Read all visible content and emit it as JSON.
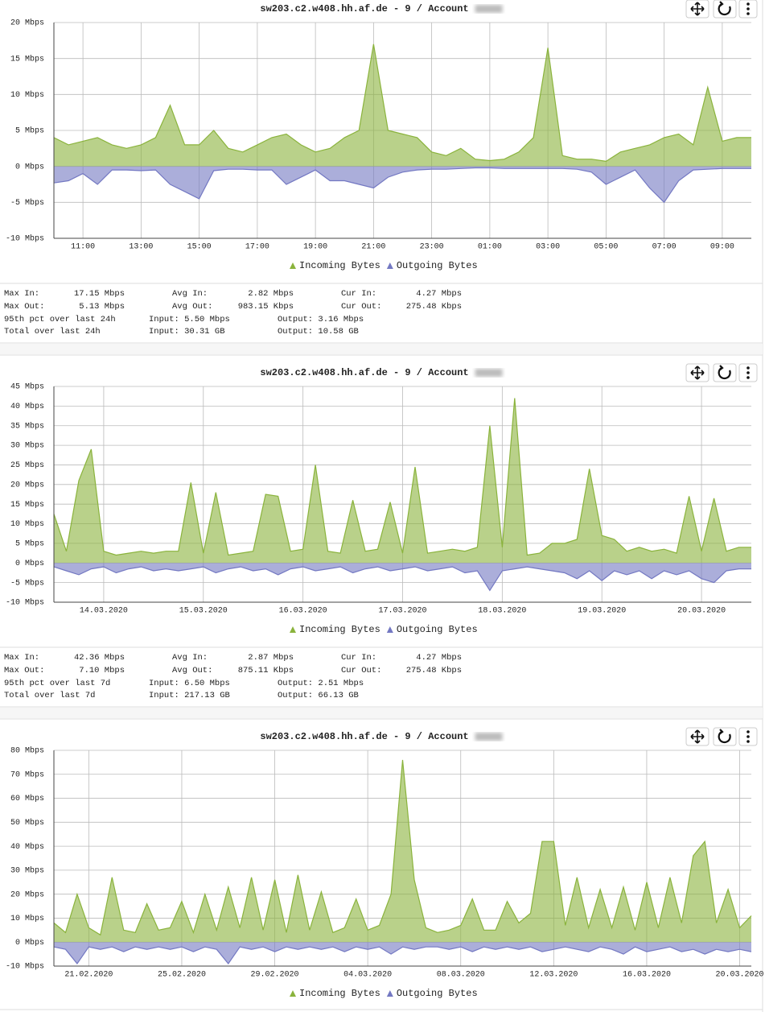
{
  "chart_data": [
    {
      "type": "area",
      "title": "sw203.c2.w408.hh.af.de - 9 / Account",
      "categories": [
        null,
        null,
        "11:00",
        null,
        null,
        null,
        "13:00",
        null,
        null,
        null,
        "15:00",
        null,
        null,
        null,
        "17:00",
        null,
        null,
        null,
        "19:00",
        null,
        null,
        null,
        "21:00",
        null,
        null,
        null,
        "23:00",
        null,
        null,
        null,
        "01:00",
        null,
        null,
        null,
        "03:00",
        null,
        null,
        null,
        "05:00",
        null,
        null,
        null,
        "07:00",
        null,
        null,
        null,
        "09:00",
        null,
        null
      ],
      "series": [
        {
          "name": "Incoming Bytes",
          "color": "#8ab33c",
          "values": [
            4,
            3,
            3.5,
            4,
            3,
            2.5,
            3,
            4,
            8.5,
            3,
            3,
            5,
            2.5,
            2,
            3,
            4,
            4.5,
            3,
            2,
            2.5,
            4,
            5,
            17,
            5,
            4.5,
            4,
            2,
            1.5,
            2.5,
            1,
            0.8,
            1,
            2,
            4,
            16.5,
            1.5,
            1,
            1,
            0.7,
            2,
            2.5,
            3,
            4,
            4.5,
            3,
            11,
            3.5,
            4,
            4
          ]
        },
        {
          "name": "Outgoing Bytes",
          "color": "#7378c2",
          "values": [
            -2.3,
            -2,
            -1,
            -2.5,
            -0.5,
            -0.5,
            -0.6,
            -0.5,
            -2.5,
            -3.5,
            -4.5,
            -0.6,
            -0.4,
            -0.4,
            -0.5,
            -0.5,
            -2.5,
            -1.5,
            -0.5,
            -2,
            -2,
            -2.5,
            -3,
            -1.5,
            -0.8,
            -0.5,
            -0.4,
            -0.4,
            -0.3,
            -0.2,
            -0.2,
            -0.3,
            -0.3,
            -0.3,
            -0.3,
            -0.3,
            -0.4,
            -0.8,
            -2.5,
            -1.5,
            -0.5,
            -3,
            -5,
            -2,
            -0.5,
            -0.4,
            -0.3,
            -0.3,
            -0.3
          ]
        }
      ],
      "ylim": [
        -10,
        20
      ],
      "yticks": [
        {
          "value": -10,
          "label": "-10 Mbps"
        },
        {
          "value": -5,
          "label": "-5 Mbps"
        },
        {
          "value": 0,
          "label": "0 Mbps"
        },
        {
          "value": 5,
          "label": "5 Mbps"
        },
        {
          "value": 10,
          "label": "10 Mbps"
        },
        {
          "value": 15,
          "label": "15 Mbps"
        },
        {
          "value": 20,
          "label": "20 Mbps"
        }
      ],
      "grid": true,
      "legend": "bottom"
    },
    {
      "type": "area",
      "title": "sw203.c2.w408.hh.af.de - 9 / Account",
      "categories": [
        null,
        null,
        null,
        null,
        "14.03.2020",
        null,
        null,
        null,
        null,
        null,
        null,
        null,
        "15.03.2020",
        null,
        null,
        null,
        null,
        null,
        null,
        null,
        "16.03.2020",
        null,
        null,
        null,
        null,
        null,
        null,
        null,
        "17.03.2020",
        null,
        null,
        null,
        null,
        null,
        null,
        null,
        "18.03.2020",
        null,
        null,
        null,
        null,
        null,
        null,
        null,
        "19.03.2020",
        null,
        null,
        null,
        null,
        null,
        null,
        null,
        "20.03.2020",
        null,
        null,
        null,
        null
      ],
      "series": [
        {
          "name": "Incoming Bytes",
          "color": "#8ab33c",
          "values": [
            12.5,
            3,
            21,
            29,
            3,
            2,
            2.5,
            3,
            2.5,
            3,
            3,
            20.5,
            2.5,
            18,
            2,
            2.5,
            3,
            17.5,
            17,
            3,
            3.5,
            25,
            3,
            2.5,
            16,
            3,
            3.5,
            15.5,
            2.5,
            24.5,
            2.5,
            3,
            3.5,
            3,
            4,
            35,
            4,
            42,
            2,
            2.5,
            5,
            5,
            6,
            24,
            7,
            6,
            3,
            4,
            3,
            3.5,
            2.5,
            17,
            3,
            16.5,
            3,
            4,
            4
          ]
        },
        {
          "name": "Outgoing Bytes",
          "color": "#7378c2",
          "values": [
            -1,
            -2,
            -3,
            -1.5,
            -1,
            -2.5,
            -1.5,
            -1,
            -2,
            -1.5,
            -2,
            -1.5,
            -1,
            -2.5,
            -1.5,
            -1,
            -2,
            -1.5,
            -3,
            -1.5,
            -1,
            -2,
            -1.5,
            -1,
            -2.5,
            -1.5,
            -1,
            -2,
            -1.5,
            -1,
            -2,
            -1.5,
            -1,
            -2.5,
            -2,
            -7,
            -2,
            -1.5,
            -1,
            -1.5,
            -2,
            -2.5,
            -4,
            -2,
            -4.5,
            -2,
            -3,
            -2,
            -4,
            -2,
            -3,
            -2,
            -4,
            -5,
            -2,
            -1.5,
            -1.5
          ]
        }
      ],
      "ylim": [
        -10,
        45
      ],
      "yticks": [
        {
          "value": -10,
          "label": "-10 Mbps"
        },
        {
          "value": -5,
          "label": "-5 Mbps"
        },
        {
          "value": 0,
          "label": "0 Mbps"
        },
        {
          "value": 5,
          "label": "5 Mbps"
        },
        {
          "value": 10,
          "label": "10 Mbps"
        },
        {
          "value": 15,
          "label": "15 Mbps"
        },
        {
          "value": 20,
          "label": "20 Mbps"
        },
        {
          "value": 25,
          "label": "25 Mbps"
        },
        {
          "value": 30,
          "label": "30 Mbps"
        },
        {
          "value": 35,
          "label": "35 Mbps"
        },
        {
          "value": 40,
          "label": "40 Mbps"
        },
        {
          "value": 45,
          "label": "45 Mbps"
        }
      ],
      "grid": true,
      "legend": "bottom"
    },
    {
      "type": "area",
      "title": "sw203.c2.w408.hh.af.de - 9 / Account",
      "categories": [
        null,
        null,
        null,
        "21.02.2020",
        null,
        null,
        null,
        null,
        null,
        null,
        null,
        "25.02.2020",
        null,
        null,
        null,
        null,
        null,
        null,
        null,
        "29.02.2020",
        null,
        null,
        null,
        null,
        null,
        null,
        null,
        "04.03.2020",
        null,
        null,
        null,
        null,
        null,
        null,
        null,
        "08.03.2020",
        null,
        null,
        null,
        null,
        null,
        null,
        null,
        "12.03.2020",
        null,
        null,
        null,
        null,
        null,
        null,
        null,
        "16.03.2020",
        null,
        null,
        null,
        null,
        null,
        null,
        null,
        "20.03.2020",
        null
      ],
      "series": [
        {
          "name": "Incoming Bytes",
          "color": "#8ab33c",
          "values": [
            8,
            4,
            20,
            6,
            3,
            27,
            5,
            4,
            16,
            5,
            6,
            17,
            4,
            20,
            5,
            23,
            6,
            27,
            5,
            26,
            4,
            28,
            5,
            21,
            4,
            6,
            18,
            5,
            7,
            20,
            76,
            26,
            6,
            4,
            5,
            7,
            18,
            5,
            5,
            17,
            8,
            12,
            42,
            42,
            7,
            27,
            6,
            22,
            6,
            23,
            5,
            25,
            6,
            27,
            8,
            36,
            42,
            8,
            22,
            6,
            11
          ]
        },
        {
          "name": "Outgoing Bytes",
          "color": "#7378c2",
          "values": [
            -2,
            -3,
            -9,
            -2,
            -3,
            -2,
            -4,
            -2,
            -3,
            -2,
            -3,
            -2,
            -4,
            -2,
            -3,
            -9,
            -2,
            -3,
            -2,
            -4,
            -2,
            -3,
            -2,
            -3,
            -2,
            -4,
            -2,
            -3,
            -2,
            -5,
            -2,
            -3,
            -2,
            -2,
            -3,
            -2,
            -4,
            -2,
            -3,
            -2,
            -3,
            -2,
            -4,
            -3,
            -2,
            -3,
            -4,
            -2,
            -3,
            -5,
            -2,
            -4,
            -3,
            -2,
            -4,
            -3,
            -5,
            -3,
            -4,
            -3,
            -4
          ]
        }
      ],
      "ylim": [
        -10,
        80
      ],
      "yticks": [
        {
          "value": -10,
          "label": "-10 Mbps"
        },
        {
          "value": 0,
          "label": "0 Mbps"
        },
        {
          "value": 10,
          "label": "10 Mbps"
        },
        {
          "value": 20,
          "label": "20 Mbps"
        },
        {
          "value": 30,
          "label": "30 Mbps"
        },
        {
          "value": 40,
          "label": "40 Mbps"
        },
        {
          "value": 50,
          "label": "50 Mbps"
        },
        {
          "value": 60,
          "label": "60 Mbps"
        },
        {
          "value": 70,
          "label": "70 Mbps"
        },
        {
          "value": 80,
          "label": "80 Mbps"
        }
      ],
      "grid": true,
      "legend": "bottom"
    }
  ],
  "stats": [
    [
      [
        "Max In:",
        "17.15 Mbps",
        "Avg In:",
        "2.82 Mbps",
        "Cur In:",
        "4.27 Mbps"
      ],
      [
        "Max Out:",
        "5.13 Mbps",
        "Avg Out:",
        "983.15 Kbps",
        "Cur Out:",
        "275.48 Kbps"
      ],
      [
        "95th pct over last 24h",
        "Input: 5.50 Mbps",
        "Output: 3.16 Mbps"
      ],
      [
        "Total over last 24h",
        "Input: 30.31 GB",
        "Output: 10.58 GB"
      ]
    ],
    [
      [
        "Max In:",
        "42.36 Mbps",
        "Avg In:",
        "2.87 Mbps",
        "Cur In:",
        "4.27 Mbps"
      ],
      [
        "Max Out:",
        "7.10 Mbps",
        "Avg Out:",
        "875.11 Kbps",
        "Cur Out:",
        "275.48 Kbps"
      ],
      [
        "95th pct over last 7d",
        "Input: 6.50 Mbps",
        "Output: 2.51 Mbps"
      ],
      [
        "Total over last 7d",
        "Input: 217.13 GB",
        "Output: 66.13 GB"
      ]
    ]
  ]
}
